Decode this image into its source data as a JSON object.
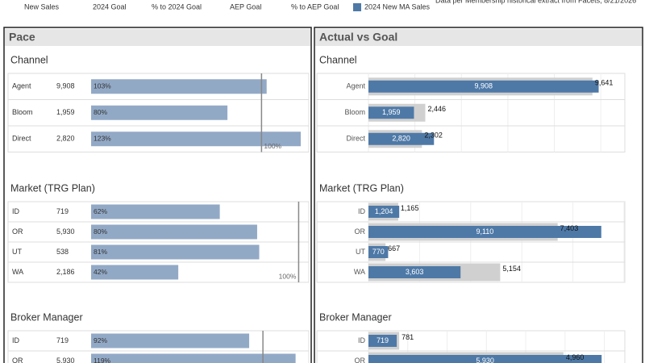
{
  "header": {
    "columns": [
      "New Sales",
      "2024 Goal",
      "% to 2024 Goal",
      "AEP Goal",
      "% to AEP Goal"
    ],
    "legend": {
      "name": "2024 New MA Sales",
      "color": "#4e79a7"
    },
    "note": "Data per Membership historical extract from Facets, 8/21/2026"
  },
  "pace": {
    "title": "Pace",
    "bar_color": "#92a9c6",
    "sections": [
      {
        "title": "Channel",
        "categories": [
          "Agent",
          "Bloom",
          "Direct"
        ],
        "counts": [
          9908,
          1959,
          2820
        ],
        "count_labels": [
          "9,908",
          "1,959",
          "2,820"
        ],
        "values": [
          103,
          80,
          123
        ],
        "value_labels": [
          "103%",
          "80%",
          "123%"
        ],
        "xlim": [
          0,
          123
        ],
        "reference": {
          "value": 100,
          "label": "100%"
        }
      },
      {
        "title": "Market (TRG Plan)",
        "categories": [
          "ID",
          "OR",
          "UT",
          "WA"
        ],
        "counts": [
          719,
          5930,
          538,
          2186
        ],
        "count_labels": [
          "719",
          "5,930",
          "538",
          "2,186"
        ],
        "values": [
          62,
          80,
          81,
          42
        ],
        "value_labels": [
          "62%",
          "80%",
          "81%",
          "42%"
        ],
        "xlim": [
          0,
          101
        ],
        "reference": {
          "value": 100,
          "label": "100%"
        }
      },
      {
        "title": "Broker Manager",
        "categories": [
          "ID",
          "OR"
        ],
        "counts": [
          719,
          5930
        ],
        "count_labels": [
          "719",
          "5,930"
        ],
        "values": [
          92,
          119
        ],
        "value_labels": [
          "92%",
          "119%"
        ],
        "xlim": [
          0,
          122
        ],
        "reference": 100
      }
    ]
  },
  "actual_vs_goal": {
    "title": "Actual vs Goal",
    "actual_color": "#4e79a7",
    "goal_color": "#d0d0d0",
    "sections": [
      {
        "title": "Channel",
        "categories": [
          "Agent",
          "Bloom",
          "Direct"
        ],
        "actual": [
          9908,
          1959,
          2820
        ],
        "actual_labels": [
          "9,908",
          "1,959",
          "2,820"
        ],
        "goal": [
          9641,
          2446,
          2302
        ],
        "goal_labels": [
          "9,641",
          "2,446",
          "2,302"
        ],
        "xlim": [
          0,
          11000
        ],
        "xticks": [
          0,
          2000,
          4000,
          6000,
          8000,
          10000
        ]
      },
      {
        "title": "Market (TRG Plan)",
        "categories": [
          "ID",
          "OR",
          "UT",
          "WA"
        ],
        "actual": [
          1204,
          9110,
          770,
          3603
        ],
        "actual_labels": [
          "1,204",
          "9,110",
          "770",
          "3,603"
        ],
        "goal": [
          1165,
          7403,
          667,
          5154
        ],
        "goal_labels": [
          "1,165",
          "7,403",
          "667",
          "5,154"
        ],
        "xlim": [
          0,
          10000
        ],
        "xticks": [
          0,
          2000,
          4000,
          6000,
          8000,
          10000
        ]
      },
      {
        "title": "Broker Manager",
        "categories": [
          "ID",
          "OR"
        ],
        "actual": [
          719,
          5930
        ],
        "actual_labels": [
          "719",
          "5,930"
        ],
        "goal": [
          781,
          4960
        ],
        "goal_labels": [
          "781",
          "4,960"
        ],
        "xlim": [
          0,
          6500
        ],
        "xticks": [
          0,
          1000,
          2000,
          3000,
          4000,
          5000,
          6000
        ]
      }
    ]
  }
}
